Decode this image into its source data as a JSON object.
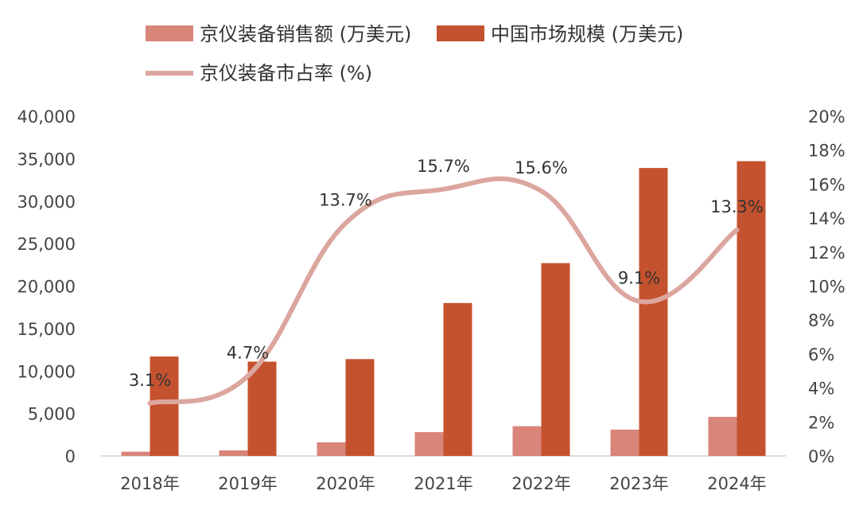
{
  "chart_data": {
    "type": "bar",
    "categories": [
      "2018年",
      "2019年",
      "2020年",
      "2021年",
      "2022年",
      "2023年",
      "2024年"
    ],
    "series": [
      {
        "name": "京仪装备销售额 (万美元)",
        "type": "bar",
        "axis": "left",
        "color": "#D9857A",
        "values": [
          500,
          650,
          1600,
          2800,
          3500,
          3100,
          4600
        ]
      },
      {
        "name": "中国市场规模 (万美元)",
        "type": "bar",
        "axis": "left",
        "color": "#C5522E",
        "values": [
          11700,
          11100,
          11400,
          18000,
          22700,
          33900,
          34700
        ]
      },
      {
        "name": "京仪装备市占率 (%)",
        "type": "line",
        "axis": "right",
        "color": "#DBA69E",
        "values": [
          3.1,
          4.7,
          13.7,
          15.7,
          15.6,
          9.1,
          13.3
        ],
        "labels": [
          "3.1%",
          "4.7%",
          "13.7%",
          "15.7%",
          "15.6%",
          "9.1%",
          "13.3%"
        ]
      }
    ],
    "yleft": {
      "min": 0,
      "max": 40000,
      "ticks": [
        "0",
        "5,000",
        "10,000",
        "15,000",
        "20,000",
        "25,000",
        "30,000",
        "35,000",
        "40,000"
      ]
    },
    "yright": {
      "min": 0,
      "max": 20,
      "ticks": [
        "0%",
        "2%",
        "4%",
        "6%",
        "8%",
        "10%",
        "12%",
        "14%",
        "16%",
        "18%",
        "20%"
      ]
    },
    "grid": false,
    "legend": "top"
  }
}
